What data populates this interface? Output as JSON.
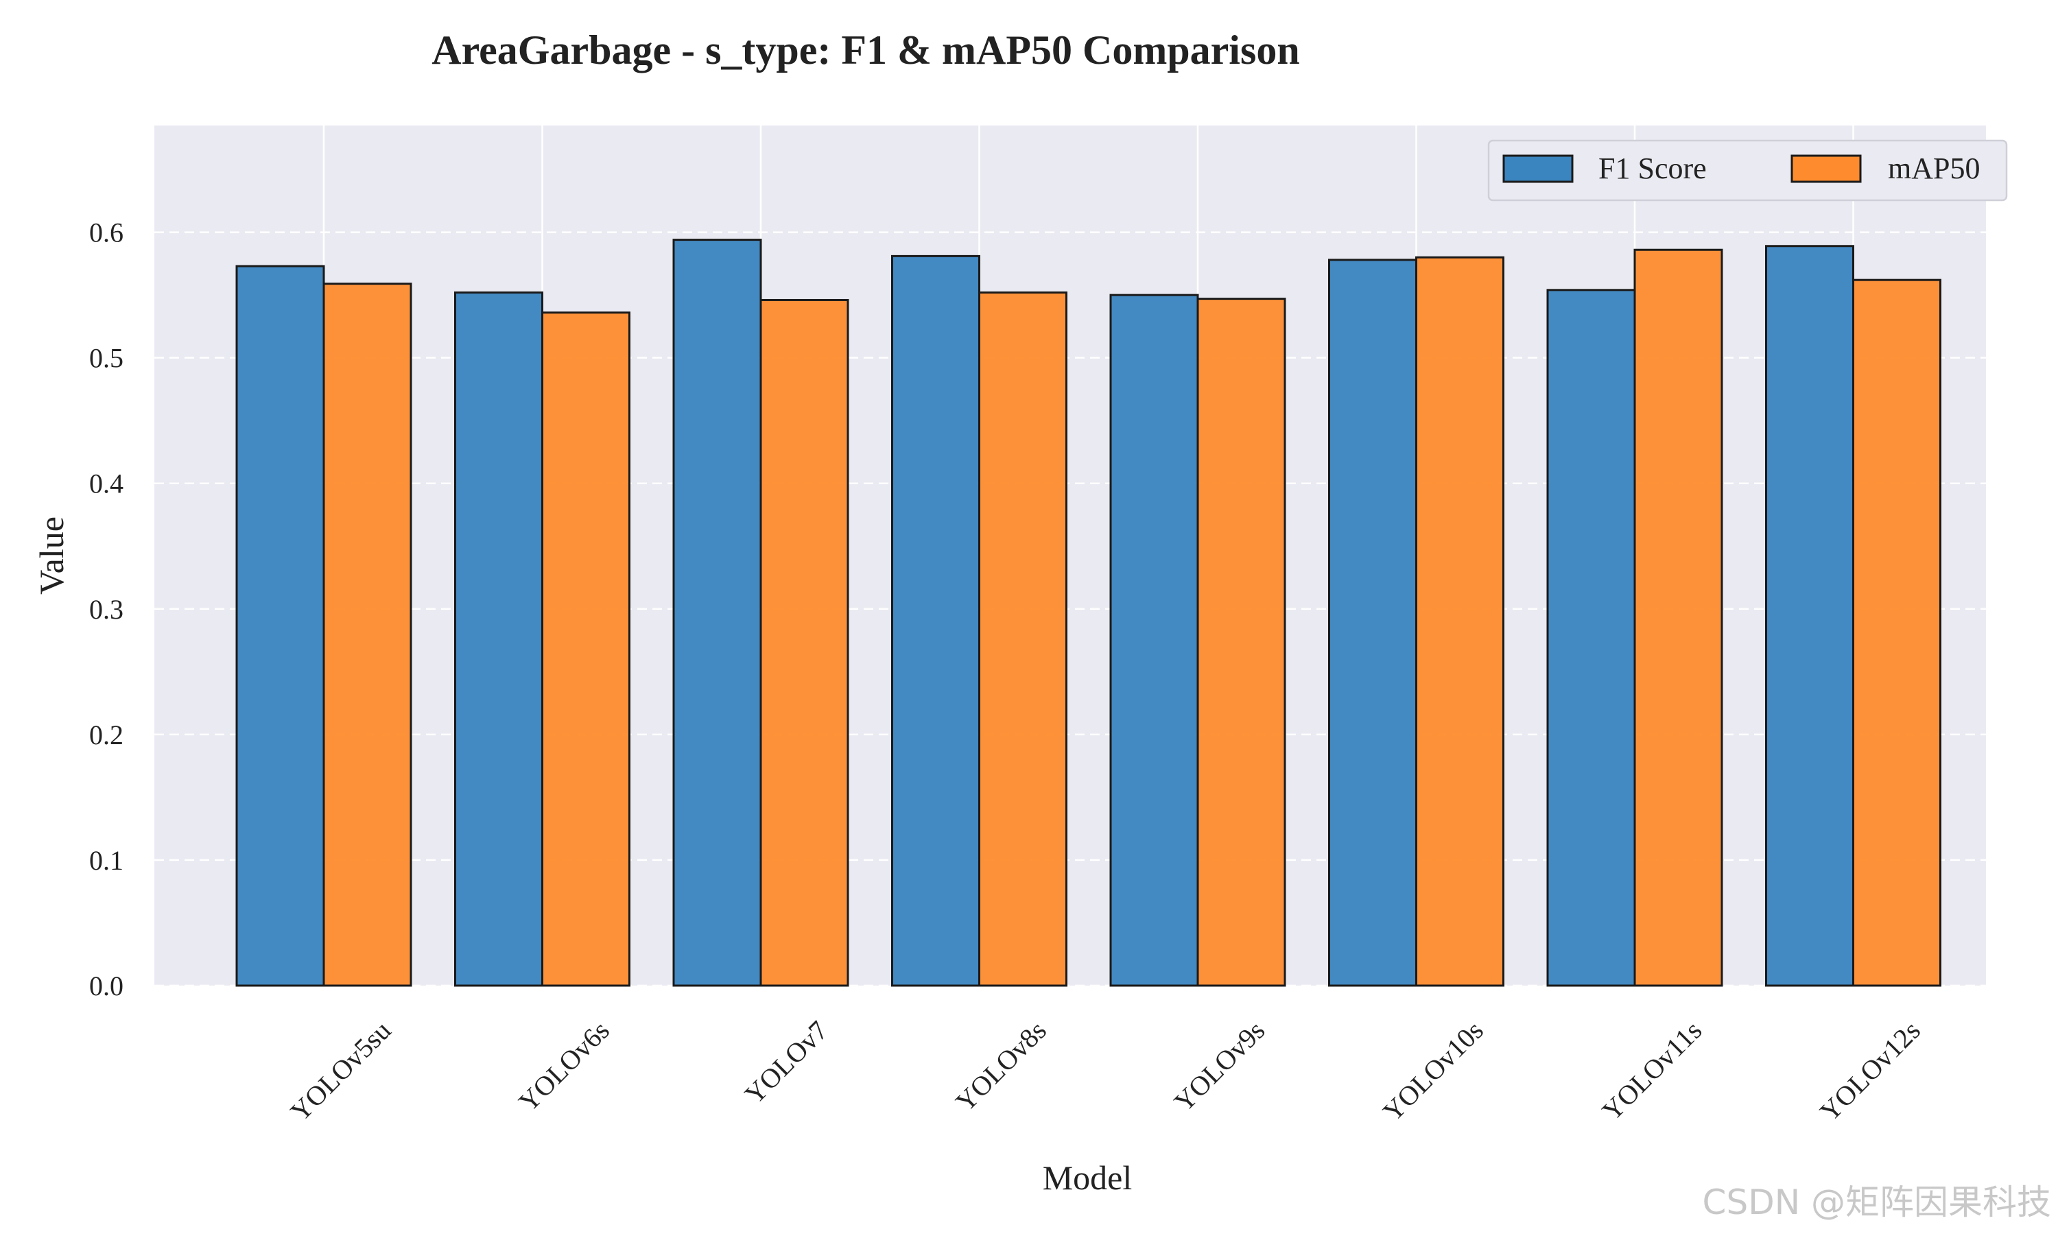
{
  "chart_data": {
    "type": "bar",
    "title": "AreaGarbage - s_type: F1 & mAP50 Comparison",
    "xlabel": "Model",
    "ylabel": "Value",
    "categories": [
      "YOLOv5su",
      "YOLOv6s",
      "YOLOv7",
      "YOLOv8s",
      "YOLOv9s",
      "YOLOv10s",
      "YOLOv11s",
      "YOLOv12s"
    ],
    "series": [
      {
        "name": "F1 Score",
        "color": "#3a84bf",
        "values": [
          0.573,
          0.552,
          0.594,
          0.581,
          0.55,
          0.578,
          0.554,
          0.589
        ]
      },
      {
        "name": "mAP50",
        "color": "#fe8c2e",
        "values": [
          0.559,
          0.536,
          0.546,
          0.552,
          0.547,
          0.58,
          0.586,
          0.562
        ]
      }
    ],
    "yticks": [
      "0.0",
      "0.1",
      "0.2",
      "0.3",
      "0.4",
      "0.5",
      "0.6"
    ],
    "ylim": [
      0,
      0.685
    ],
    "grid": "dashed horizontal, solid vertical",
    "legend_position": "top-right",
    "plot_background": "#eaeaf2",
    "edge_color": "#1a1a1a"
  },
  "watermark": "CSDN @矩阵因果科技"
}
